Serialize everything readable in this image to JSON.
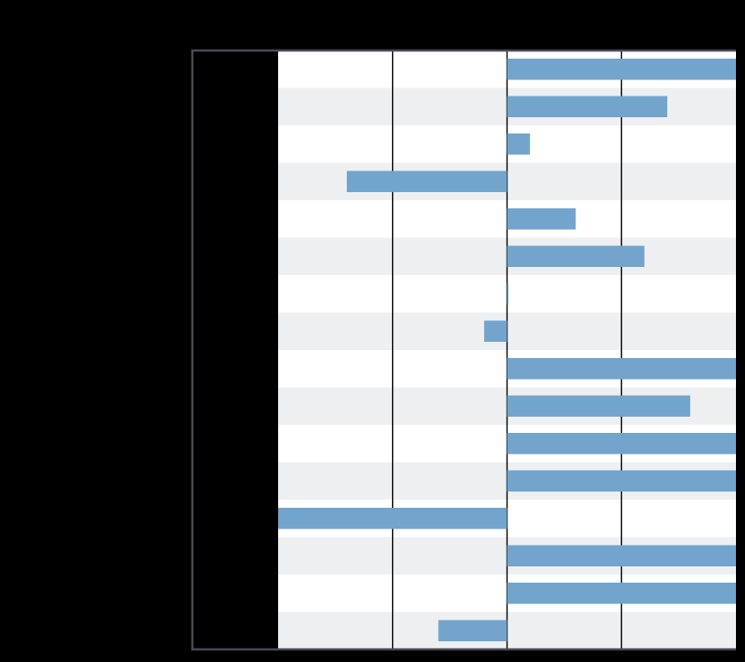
{
  "chart_data": {
    "type": "bar",
    "orientation": "horizontal",
    "title": "",
    "xlabel": "",
    "ylabel": "",
    "categories": [
      "",
      "",
      "",
      "",
      "",
      "",
      "",
      "",
      "",
      "",
      "",
      "",
      "",
      "",
      "",
      ""
    ],
    "values": [
      1.0,
      0.7,
      0.1,
      -0.7,
      0.3,
      0.6,
      0.0,
      -0.1,
      1.0,
      0.8,
      1.0,
      1.0,
      -1.0,
      1.0,
      1.0,
      -0.3
    ],
    "xlim": [
      -1,
      1
    ],
    "gridlines_x": [
      -0.5,
      0.0,
      0.5
    ],
    "grid": true,
    "row_striping": true,
    "legend": "none",
    "colors": {
      "bar": "#72a4cc",
      "stripe_light": "#ffffff",
      "stripe_dark": "#eeeff1",
      "gridline": "#000000",
      "frame": "#4a4a55",
      "background": "#000000"
    }
  }
}
